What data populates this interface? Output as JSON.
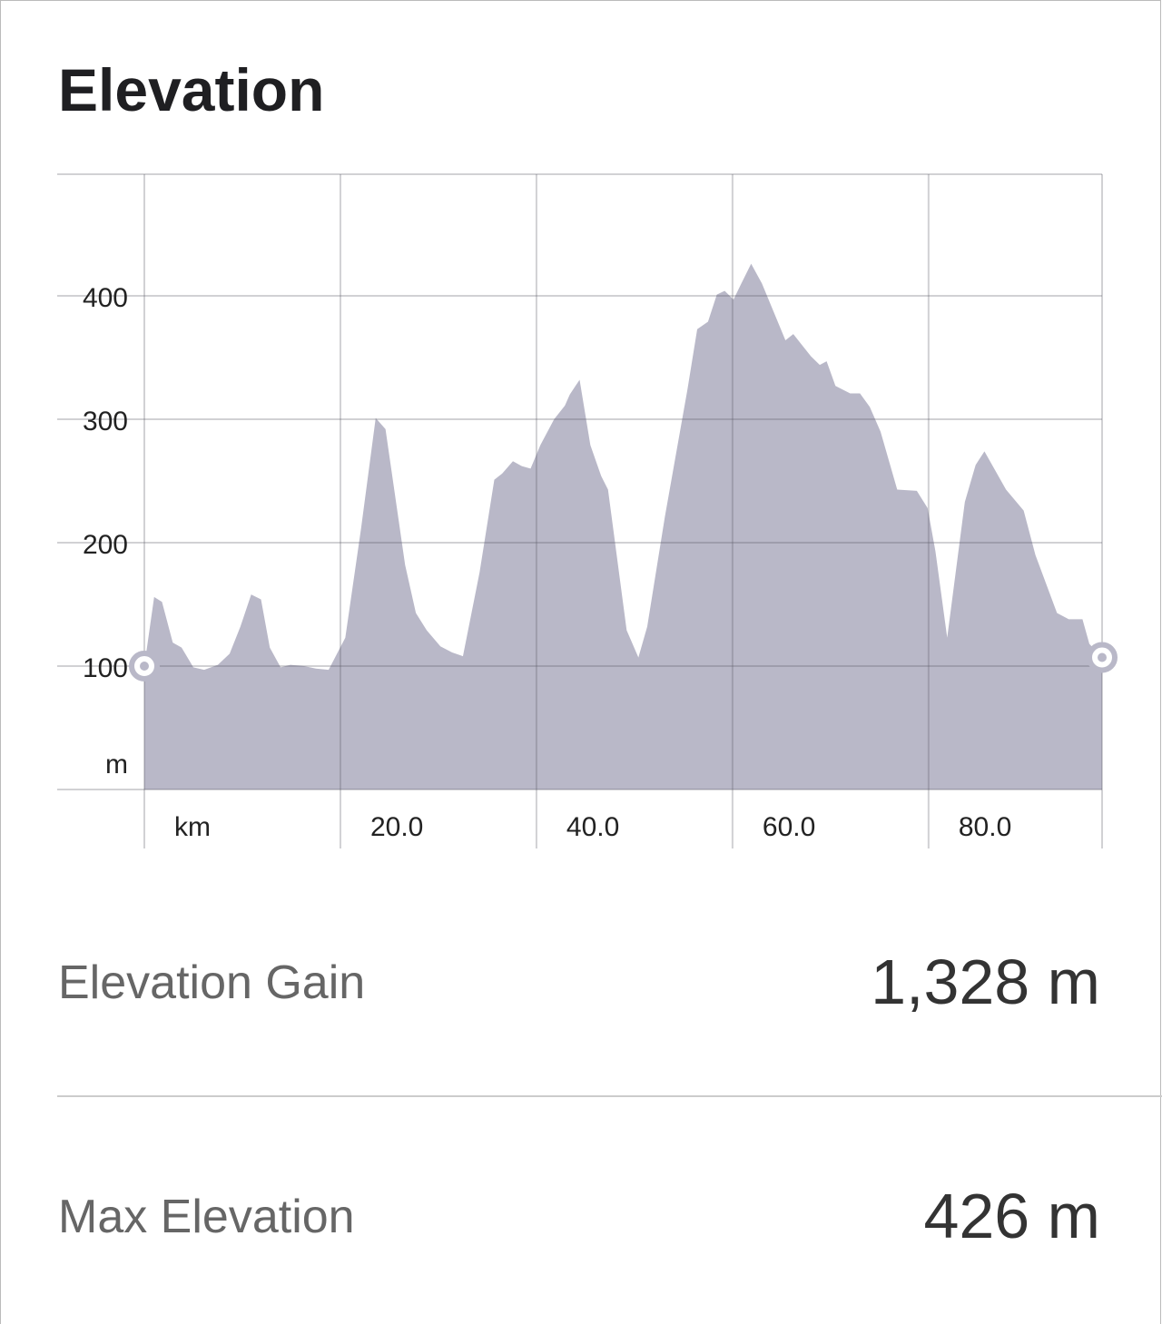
{
  "title": "Elevation",
  "chart_data": {
    "type": "area",
    "color": "#b9b8c8",
    "x": [
      0,
      1.0,
      1.8,
      2.9,
      3.8,
      5.0,
      6.1,
      7.5,
      8.7,
      9.8,
      10.9,
      11.9,
      12.8,
      13.9,
      14.9,
      16.3,
      17.5,
      18.8,
      20.5,
      22.1,
      23.6,
      24.6,
      26.6,
      27.7,
      28.8,
      30.2,
      31.4,
      32.5,
      34.2,
      35.7,
      36.5,
      37.6,
      38.5,
      39.4,
      40.4,
      41.8,
      42.9,
      43.4,
      44.4,
      45.5,
      46.6,
      47.3,
      49.2,
      50.4,
      51.3,
      53.1,
      55.4,
      56.4,
      57.5,
      58.4,
      59.2,
      60.1,
      60.9,
      61.9,
      63.0,
      65.4,
      66.2,
      68.0,
      68.9,
      69.6,
      70.5,
      72.0,
      73.0,
      74.0,
      75.1,
      76.8,
      78.8,
      79.9,
      80.7,
      81.9,
      83.7,
      84.8,
      85.7,
      87.9,
      89.7,
      90.9,
      93.1,
      94.3,
      95.7,
      96.4,
      97.7
    ],
    "values": [
      100,
      156,
      152,
      119,
      115,
      99,
      97,
      101,
      110,
      132,
      158,
      154,
      115,
      99,
      101,
      100,
      98,
      97,
      123,
      211,
      301,
      292,
      182,
      143,
      129,
      116,
      111,
      108,
      176,
      251,
      256,
      266,
      262,
      260,
      279,
      300,
      311,
      320,
      332,
      279,
      254,
      243,
      129,
      107,
      132,
      221,
      324,
      373,
      379,
      401,
      404,
      397,
      410,
      426,
      410,
      364,
      369,
      351,
      344,
      347,
      327,
      321,
      321,
      310,
      290,
      243,
      242,
      228,
      193,
      123,
      233,
      263,
      274,
      243,
      226,
      190,
      143,
      138,
      138,
      118,
      107
    ],
    "xlim": [
      0,
      97.7
    ],
    "ylim": [
      0,
      500
    ],
    "xticks": [
      {
        "value": 0,
        "label": "km"
      },
      {
        "value": 20,
        "label": "20.0"
      },
      {
        "value": 40,
        "label": "40.0"
      },
      {
        "value": 60,
        "label": "60.0"
      },
      {
        "value": 80,
        "label": "80.0"
      }
    ],
    "yticks": [
      {
        "value": 0,
        "label": "m"
      },
      100,
      200,
      300,
      400
    ],
    "grid": true
  },
  "stats": [
    {
      "label": "Elevation Gain",
      "value": "1,328 m"
    },
    {
      "label": "Max Elevation",
      "value": "426 m"
    }
  ]
}
